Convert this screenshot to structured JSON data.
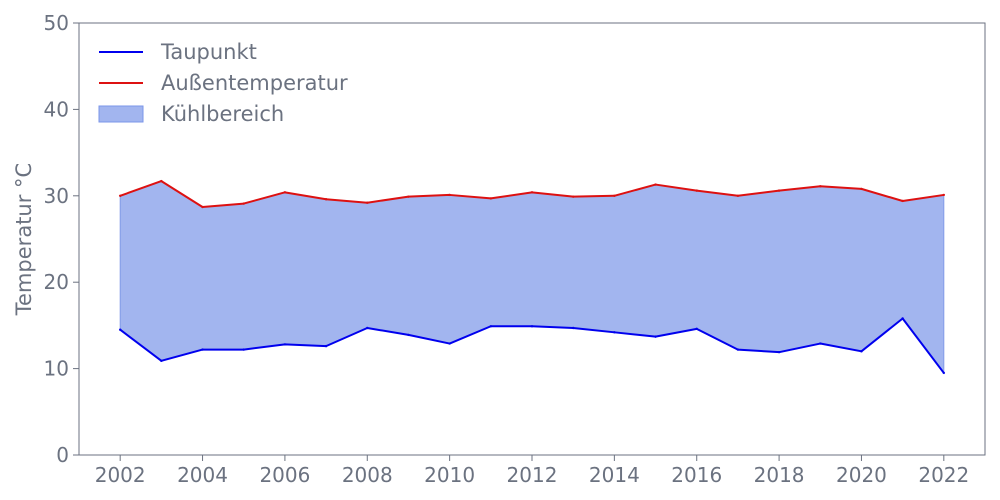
{
  "chart_data": {
    "type": "area",
    "xlabel": "",
    "ylabel": "Temperatur °C",
    "xlim": [
      2001,
      2023
    ],
    "ylim": [
      0,
      50
    ],
    "x_ticks": [
      2002,
      2004,
      2006,
      2008,
      2010,
      2012,
      2014,
      2016,
      2018,
      2020,
      2022
    ],
    "y_ticks": [
      0,
      10,
      20,
      30,
      40,
      50
    ],
    "grid": false,
    "legend_position": "top-left",
    "x": [
      2002,
      2003,
      2004,
      2005,
      2006,
      2007,
      2008,
      2009,
      2010,
      2011,
      2012,
      2013,
      2014,
      2015,
      2016,
      2017,
      2018,
      2019,
      2020,
      2021,
      2022
    ],
    "series": [
      {
        "name": "Taupunkt",
        "type": "line",
        "color": "#0000ee",
        "values": [
          14.5,
          10.9,
          12.2,
          12.2,
          12.8,
          12.6,
          14.7,
          13.9,
          12.9,
          14.9,
          14.9,
          14.7,
          14.2,
          13.7,
          14.6,
          12.2,
          11.9,
          12.9,
          12.0,
          15.8,
          9.5
        ]
      },
      {
        "name": "Außentemperatur",
        "type": "line",
        "color": "#dd1111",
        "values": [
          30.0,
          31.7,
          28.7,
          29.1,
          30.4,
          29.6,
          29.2,
          29.9,
          30.1,
          29.7,
          30.4,
          29.9,
          30.0,
          31.3,
          30.6,
          30.0,
          30.6,
          31.1,
          30.8,
          29.4,
          30.1
        ]
      }
    ],
    "fill": {
      "name": "Kühlbereich",
      "between": [
        "Taupunkt",
        "Außentemperatur"
      ],
      "color": "#7b96e8",
      "opacity": 0.7
    }
  }
}
